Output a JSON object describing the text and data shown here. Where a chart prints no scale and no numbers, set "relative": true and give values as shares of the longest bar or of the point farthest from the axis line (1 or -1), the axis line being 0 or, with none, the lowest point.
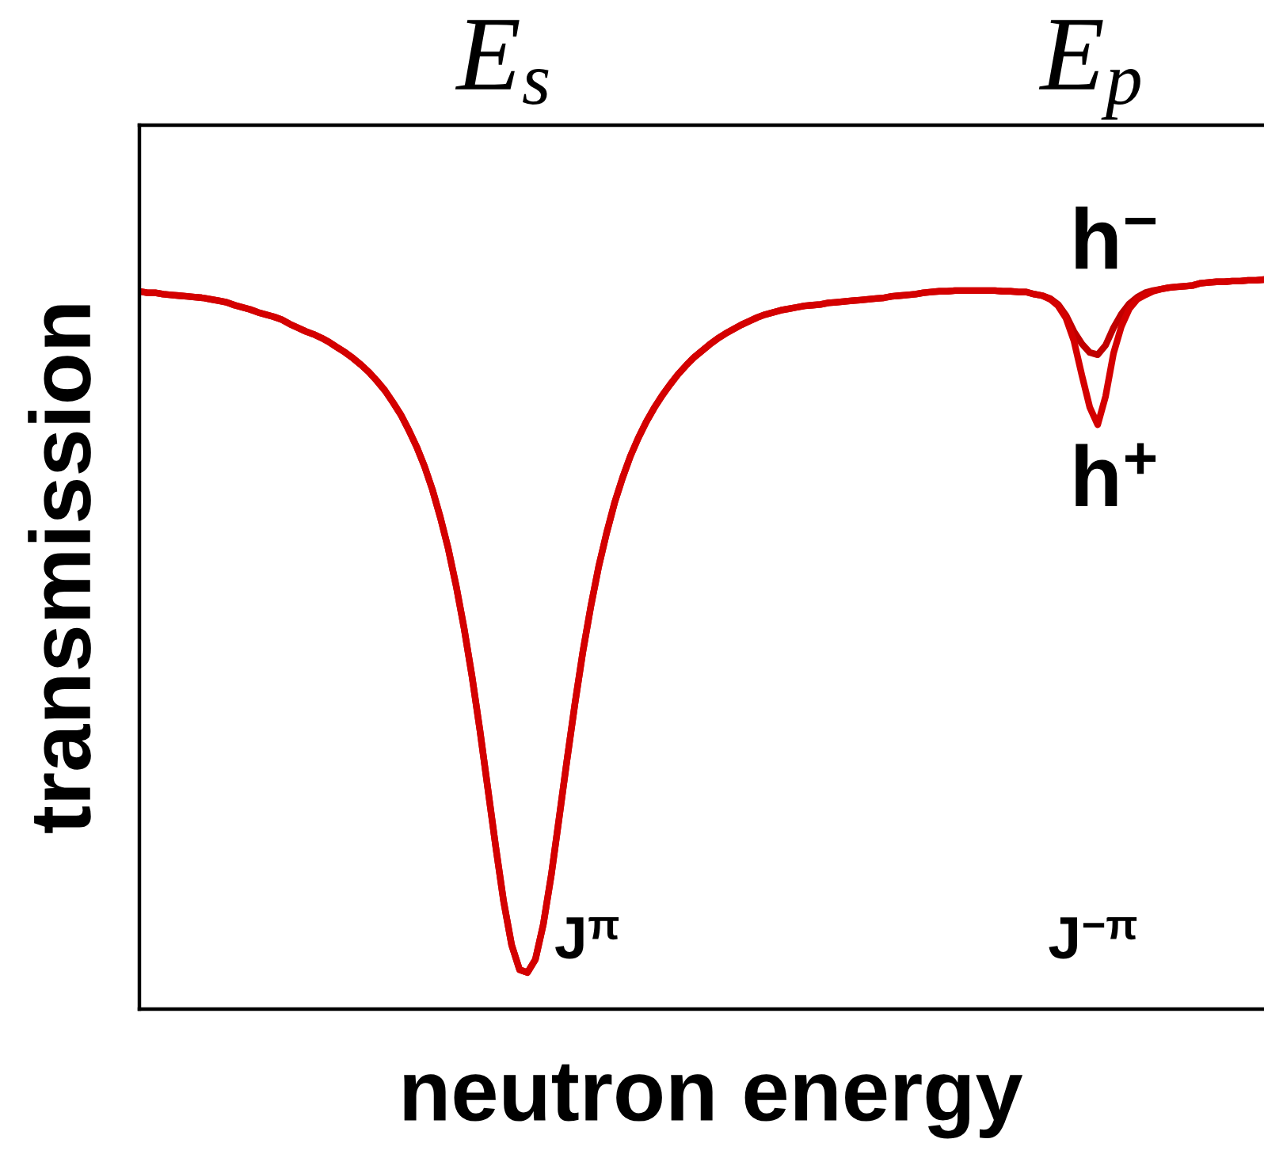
{
  "chart_data": {
    "type": "line",
    "relative": true,
    "xlabel": "neutron energy",
    "ylabel": "transmission",
    "annotations": [
      "E$_{s}$",
      "E$_{p}$",
      "J$^{π}$",
      "J$^{−π}$"
    ],
    "categories": [
      null,
      null,
      null,
      null,
      null,
      null,
      null,
      null,
      null,
      null,
      null,
      null,
      null,
      null,
      null,
      null,
      null,
      null,
      null,
      null,
      null,
      null,
      null,
      null,
      null,
      null,
      null,
      null,
      null,
      null,
      null,
      null,
      null,
      null,
      null,
      null,
      null,
      null,
      null,
      null,
      null,
      null,
      null,
      null,
      null,
      null,
      null,
      null,
      null,
      null,
      null,
      null,
      null,
      null,
      null,
      null,
      null,
      null,
      null,
      null,
      null,
      null,
      null,
      null,
      null,
      null,
      null,
      null,
      null,
      null,
      null,
      null,
      null,
      null,
      null,
      null,
      null,
      null,
      null,
      null,
      null,
      null,
      null,
      null,
      null,
      null,
      null,
      null,
      null,
      null,
      null,
      null,
      null,
      null,
      null,
      null,
      null,
      null,
      null,
      null,
      null,
      null,
      null,
      null,
      null,
      null,
      null,
      null,
      null,
      null,
      null,
      null,
      null,
      null,
      null,
      null,
      null,
      null,
      null,
      null,
      null,
      null,
      null,
      null,
      null,
      null,
      null,
      null,
      null,
      null,
      null,
      null,
      null,
      null,
      null,
      null,
      null,
      null,
      null,
      null,
      null,
      null,
      null
    ],
    "series": [
      {
        "name": "h$^{−}$",
        "color": "#c00000",
        "values": [
          0.984,
          0.982,
          0.982,
          0.98,
          0.979,
          0.978,
          0.977,
          0.976,
          0.975,
          0.973,
          0.971,
          0.969,
          0.965,
          0.962,
          0.959,
          0.955,
          0.952,
          0.949,
          0.945,
          0.939,
          0.934,
          0.929,
          0.925,
          0.92,
          0.914,
          0.907,
          0.9,
          0.892,
          0.883,
          0.873,
          0.861,
          0.848,
          0.832,
          0.815,
          0.794,
          0.771,
          0.744,
          0.712,
          0.674,
          0.631,
          0.58,
          0.522,
          0.456,
          0.382,
          0.302,
          0.222,
          0.147,
          0.088,
          0.054,
          0.05,
          0.068,
          0.116,
          0.183,
          0.262,
          0.342,
          0.419,
          0.49,
          0.552,
          0.607,
          0.653,
          0.694,
          0.728,
          0.758,
          0.783,
          0.805,
          0.824,
          0.841,
          0.856,
          0.87,
          0.882,
          0.893,
          0.902,
          0.911,
          0.919,
          0.926,
          0.932,
          0.938,
          0.943,
          0.948,
          0.952,
          0.955,
          0.958,
          0.96,
          0.962,
          0.964,
          0.965,
          0.966,
          0.968,
          0.969,
          0.97,
          0.971,
          0.972,
          0.973,
          0.974,
          0.975,
          0.977,
          0.978,
          0.979,
          0.98,
          0.982,
          0.983,
          0.984,
          0.984,
          0.985,
          0.985,
          0.985,
          0.985,
          0.985,
          0.985,
          0.984,
          0.984,
          0.983,
          0.983,
          0.98,
          0.978,
          0.974,
          0.966,
          0.951,
          0.929,
          0.912,
          0.9,
          0.897,
          0.91,
          0.934,
          0.953,
          0.967,
          0.976,
          0.982,
          0.985,
          0.987,
          0.989,
          0.99,
          0.991,
          0.992,
          0.995,
          0.996,
          0.997,
          0.997,
          0.998,
          0.998,
          0.999,
          0.999,
          1
        ]
      },
      {
        "name": "h$^{+}$",
        "color": "#d40000",
        "values": [
          0.984,
          0.982,
          0.982,
          0.98,
          0.979,
          0.978,
          0.977,
          0.976,
          0.975,
          0.973,
          0.971,
          0.969,
          0.965,
          0.962,
          0.959,
          0.955,
          0.952,
          0.949,
          0.945,
          0.939,
          0.934,
          0.929,
          0.925,
          0.92,
          0.914,
          0.907,
          0.9,
          0.892,
          0.883,
          0.873,
          0.861,
          0.848,
          0.832,
          0.815,
          0.794,
          0.771,
          0.744,
          0.712,
          0.674,
          0.631,
          0.58,
          0.522,
          0.456,
          0.382,
          0.302,
          0.222,
          0.147,
          0.088,
          0.054,
          0.05,
          0.068,
          0.116,
          0.183,
          0.262,
          0.342,
          0.419,
          0.49,
          0.552,
          0.607,
          0.653,
          0.694,
          0.728,
          0.758,
          0.783,
          0.805,
          0.824,
          0.841,
          0.856,
          0.87,
          0.882,
          0.893,
          0.902,
          0.911,
          0.919,
          0.926,
          0.932,
          0.938,
          0.943,
          0.948,
          0.952,
          0.955,
          0.958,
          0.96,
          0.962,
          0.964,
          0.965,
          0.966,
          0.968,
          0.969,
          0.97,
          0.971,
          0.972,
          0.973,
          0.974,
          0.975,
          0.977,
          0.978,
          0.979,
          0.98,
          0.982,
          0.983,
          0.984,
          0.984,
          0.985,
          0.985,
          0.985,
          0.985,
          0.985,
          0.985,
          0.984,
          0.984,
          0.983,
          0.983,
          0.98,
          0.978,
          0.973,
          0.964,
          0.947,
          0.916,
          0.869,
          0.825,
          0.801,
          0.84,
          0.899,
          0.936,
          0.96,
          0.973,
          0.979,
          0.984,
          0.987,
          0.989,
          0.99,
          0.991,
          0.992,
          0.995,
          0.996,
          0.997,
          0.997,
          0.998,
          0.998,
          0.999,
          0.999,
          1
        ]
      }
    ]
  }
}
